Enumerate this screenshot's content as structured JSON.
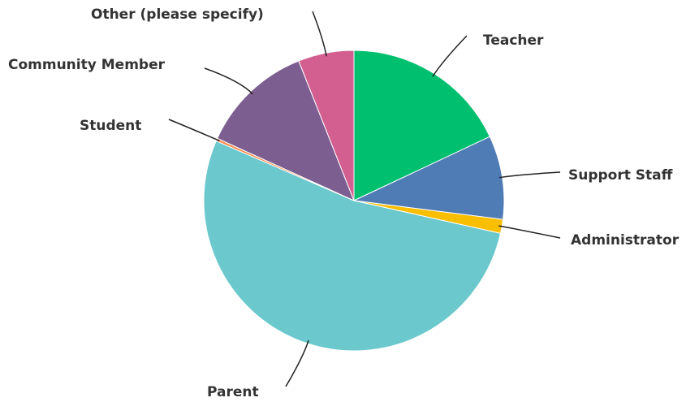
{
  "chart_data": {
    "type": "pie",
    "categories": [
      "Teacher",
      "Support Staff",
      "Administrator",
      "Parent",
      "Student",
      "Community Member",
      "Other (please specify)"
    ],
    "values": [
      18,
      9,
      1.5,
      53,
      0.3,
      12.2,
      6
    ],
    "colors": [
      "#00bf6f",
      "#507cb6",
      "#f9be00",
      "#6bc8cd",
      "#ff8b4f",
      "#7d5e90",
      "#d25f90"
    ]
  }
}
